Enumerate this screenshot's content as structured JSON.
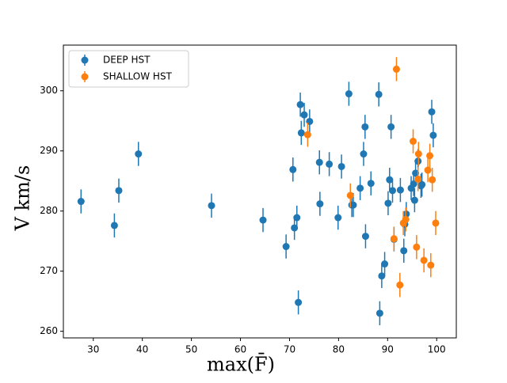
{
  "chart_data": {
    "type": "scatter",
    "x_label": "max(F̄)",
    "y_label": "V km/s",
    "xlim": [
      23.9,
      104.0
    ],
    "ylim": [
      258.9,
      307.6
    ],
    "xticks": [
      30,
      40,
      50,
      60,
      70,
      80,
      90,
      100
    ],
    "yticks": [
      260,
      270,
      280,
      290,
      300
    ],
    "legend": "upper left",
    "series": [
      {
        "name": "DEEP HST",
        "color": "#1f77b4",
        "x": [
          27.5,
          34.3,
          35.2,
          39.2,
          54.1,
          64.6,
          69.3,
          70.7,
          71.0,
          71.5,
          71.8,
          72.2,
          72.4,
          73.0,
          74.1,
          76.1,
          76.2,
          78.1,
          79.9,
          80.6,
          82.1,
          82.7,
          83.0,
          84.4,
          85.1,
          85.4,
          85.5,
          86.6,
          88.2,
          88.4,
          88.8,
          89.4,
          90.1,
          90.4,
          90.7,
          91.0,
          91.3,
          92.6,
          93.3,
          93.5,
          93.8,
          94.8,
          95.3,
          95.5,
          95.7,
          96.2,
          96.8,
          97.0,
          99.0,
          99.3
        ],
        "values": [
          281.6,
          277.6,
          283.4,
          289.5,
          280.9,
          278.5,
          274.1,
          286.9,
          277.2,
          278.9,
          264.8,
          297.7,
          293.0,
          296.0,
          294.9,
          288.1,
          281.2,
          287.8,
          278.9,
          287.4,
          299.5,
          281.0,
          281.0,
          283.8,
          289.5,
          294.0,
          275.8,
          284.6,
          299.4,
          263.0,
          269.2,
          271.2,
          281.3,
          285.2,
          294.0,
          283.4,
          275.3,
          283.5,
          273.4,
          277.8,
          279.5,
          283.8,
          284.5,
          281.8,
          286.3,
          288.3,
          284.2,
          284.4,
          296.5,
          292.6
        ],
        "errors": [
          2,
          2,
          2,
          2,
          2,
          2,
          2,
          2,
          2,
          2,
          2,
          2,
          2,
          2,
          2,
          2,
          2,
          2,
          2,
          2,
          2,
          2,
          2,
          2,
          2,
          2,
          2,
          2,
          2,
          2,
          2,
          2,
          2,
          2,
          2,
          2,
          2,
          2,
          2,
          2,
          2,
          2,
          2,
          2,
          2,
          2,
          2,
          2,
          2,
          2
        ]
      },
      {
        "name": "SHALLOW HST",
        "color": "#ff7f0e",
        "x": [
          73.7,
          82.4,
          91.3,
          91.8,
          92.5,
          93.2,
          93.7,
          95.2,
          95.9,
          96.2,
          96.3,
          97.4,
          98.2,
          98.6,
          98.8,
          99.1,
          99.8
        ],
        "values": [
          292.7,
          282.6,
          275.4,
          303.6,
          267.7,
          278.0,
          278.6,
          291.6,
          274.0,
          285.3,
          289.5,
          271.8,
          286.8,
          289.2,
          271.0,
          285.2,
          278.0
        ],
        "errors": [
          2,
          2,
          2,
          2,
          2,
          2,
          2,
          2,
          2,
          2,
          2,
          2,
          2,
          2,
          2,
          2,
          2
        ]
      }
    ]
  }
}
